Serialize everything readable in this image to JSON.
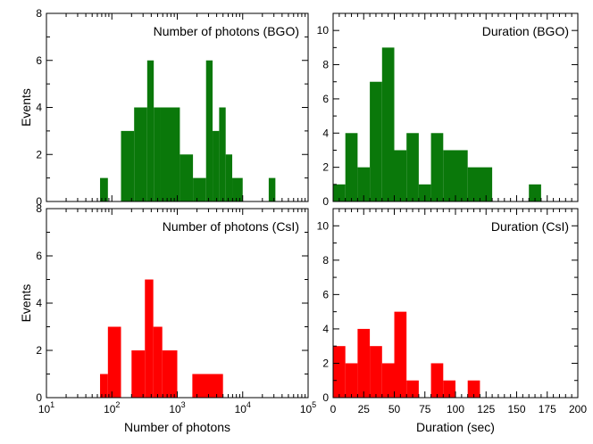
{
  "chart_data": [
    {
      "id": "bgo_photons",
      "type": "bar",
      "title": "Number of photons (BGO)",
      "xscale": "log",
      "xlim": [
        10,
        100000
      ],
      "ylim": [
        0,
        8
      ],
      "xlabel": "",
      "ylabel": "Events",
      "xticks": [
        10,
        100,
        1000,
        10000,
        100000
      ],
      "xtick_labels": [
        "",
        "",
        "",
        "",
        ""
      ],
      "yticks": [
        0,
        2,
        4,
        6,
        8
      ],
      "ytick_labels": [
        "0",
        "2",
        "4",
        "6",
        "8"
      ],
      "color": "#0a780a",
      "bins": [
        {
          "x0": 66,
          "x1": 87,
          "v": 1
        },
        {
          "x0": 138,
          "x1": 219,
          "v": 3
        },
        {
          "x0": 219,
          "x1": 347,
          "v": 4
        },
        {
          "x0": 347,
          "x1": 437,
          "v": 6
        },
        {
          "x0": 437,
          "x1": 550,
          "v": 4
        },
        {
          "x0": 550,
          "x1": 1096,
          "v": 4
        },
        {
          "x0": 1096,
          "x1": 1738,
          "v": 2
        },
        {
          "x0": 1738,
          "x1": 2754,
          "v": 1
        },
        {
          "x0": 2754,
          "x1": 3467,
          "v": 6
        },
        {
          "x0": 3467,
          "x1": 4365,
          "v": 3
        },
        {
          "x0": 4365,
          "x1": 5495,
          "v": 4
        },
        {
          "x0": 5495,
          "x1": 6918,
          "v": 2
        },
        {
          "x0": 6918,
          "x1": 10000,
          "v": 1
        },
        {
          "x0": 25000,
          "x1": 31600,
          "v": 1
        }
      ]
    },
    {
      "id": "bgo_duration",
      "type": "bar",
      "title": "Duration (BGO)",
      "xscale": "linear",
      "xlim": [
        0,
        200
      ],
      "ylim": [
        0,
        11
      ],
      "xlabel": "",
      "ylabel": "",
      "xticks": [
        0,
        25,
        50,
        75,
        100,
        125,
        150,
        175,
        200
      ],
      "xtick_labels": [
        "",
        "",
        "",
        "",
        "",
        "",
        "",
        "",
        ""
      ],
      "yticks": [
        0,
        2,
        4,
        6,
        8,
        10
      ],
      "ytick_labels": [
        "0",
        "2",
        "4",
        "6",
        "8",
        "10"
      ],
      "color": "#0a780a",
      "bins": [
        {
          "x0": 0,
          "x1": 10,
          "v": 1
        },
        {
          "x0": 10,
          "x1": 20,
          "v": 4
        },
        {
          "x0": 20,
          "x1": 30,
          "v": 2
        },
        {
          "x0": 30,
          "x1": 40,
          "v": 7
        },
        {
          "x0": 40,
          "x1": 50,
          "v": 9
        },
        {
          "x0": 50,
          "x1": 60,
          "v": 3
        },
        {
          "x0": 60,
          "x1": 70,
          "v": 4
        },
        {
          "x0": 70,
          "x1": 80,
          "v": 1
        },
        {
          "x0": 80,
          "x1": 90,
          "v": 4
        },
        {
          "x0": 90,
          "x1": 100,
          "v": 3
        },
        {
          "x0": 100,
          "x1": 110,
          "v": 3
        },
        {
          "x0": 110,
          "x1": 130,
          "v": 2
        },
        {
          "x0": 160,
          "x1": 170,
          "v": 1
        }
      ]
    },
    {
      "id": "csi_photons",
      "type": "bar",
      "title": "Number of photons (CsI)",
      "xscale": "log",
      "xlim": [
        10,
        100000
      ],
      "ylim": [
        0,
        8
      ],
      "xlabel": "Number of photons",
      "ylabel": "Events",
      "xticks": [
        10,
        100,
        1000,
        10000,
        100000
      ],
      "xtick_labels": [
        "10",
        "10",
        "10",
        "10",
        "10"
      ],
      "xtick_exponents": [
        "1",
        "2",
        "3",
        "4",
        "5"
      ],
      "yticks": [
        0,
        2,
        4,
        6,
        8
      ],
      "ytick_labels": [
        "0",
        "2",
        "4",
        "6",
        "8"
      ],
      "color": "#ff0000",
      "bins": [
        {
          "x0": 66,
          "x1": 87,
          "v": 1
        },
        {
          "x0": 87,
          "x1": 138,
          "v": 3
        },
        {
          "x0": 200,
          "x1": 320,
          "v": 2
        },
        {
          "x0": 320,
          "x1": 430,
          "v": 5
        },
        {
          "x0": 430,
          "x1": 590,
          "v": 3
        },
        {
          "x0": 590,
          "x1": 1000,
          "v": 2
        },
        {
          "x0": 1700,
          "x1": 5000,
          "v": 1
        }
      ]
    },
    {
      "id": "csi_duration",
      "type": "bar",
      "title": "Duration (CsI)",
      "xscale": "linear",
      "xlim": [
        0,
        200
      ],
      "ylim": [
        0,
        11
      ],
      "xlabel": "Duration (sec)",
      "ylabel": "",
      "xticks": [
        0,
        25,
        50,
        75,
        100,
        125,
        150,
        175,
        200
      ],
      "xtick_labels": [
        "0",
        "25",
        "50",
        "75",
        "100",
        "125",
        "150",
        "175",
        "200"
      ],
      "yticks": [
        0,
        2,
        4,
        6,
        8,
        10
      ],
      "ytick_labels": [
        "0",
        "2",
        "4",
        "6",
        "8",
        "10"
      ],
      "color": "#ff0000",
      "bins": [
        {
          "x0": 0,
          "x1": 10,
          "v": 3
        },
        {
          "x0": 10,
          "x1": 20,
          "v": 2
        },
        {
          "x0": 20,
          "x1": 30,
          "v": 4
        },
        {
          "x0": 30,
          "x1": 40,
          "v": 3
        },
        {
          "x0": 40,
          "x1": 50,
          "v": 2
        },
        {
          "x0": 50,
          "x1": 60,
          "v": 5
        },
        {
          "x0": 60,
          "x1": 70,
          "v": 1
        },
        {
          "x0": 80,
          "x1": 90,
          "v": 2
        },
        {
          "x0": 90,
          "x1": 100,
          "v": 1
        },
        {
          "x0": 110,
          "x1": 120,
          "v": 1
        }
      ]
    }
  ]
}
